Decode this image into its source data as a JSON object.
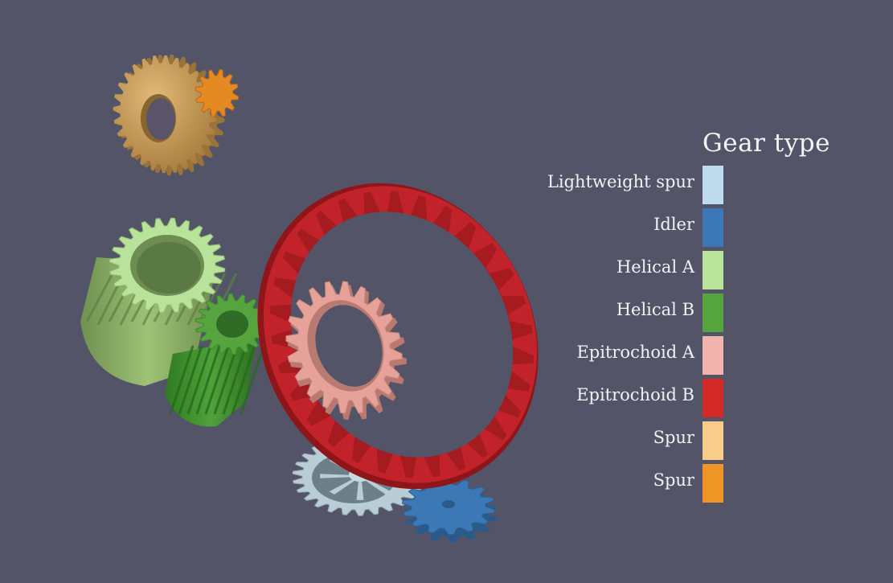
{
  "legend": {
    "title": "Gear type",
    "items": [
      {
        "label": "Lightweight spur",
        "color": "#bfdcee"
      },
      {
        "label": "Idler",
        "color": "#3b78b5"
      },
      {
        "label": "Helical A",
        "color": "#b9e39a"
      },
      {
        "label": "Helical B",
        "color": "#55a43d"
      },
      {
        "label": "Epitrochoid A",
        "color": "#f2b4ae"
      },
      {
        "label": "Epitrochoid B",
        "color": "#d42a27"
      },
      {
        "label": "Spur",
        "color": "#f8cd8b"
      },
      {
        "label": "Spur",
        "color": "#ef9526"
      }
    ]
  },
  "gears": [
    {
      "name": "spur-gear-large",
      "color": "#c59a55"
    },
    {
      "name": "spur-gear-small",
      "color": "#e58a22"
    },
    {
      "name": "helical-gear-a",
      "color": "#9dc56f"
    },
    {
      "name": "helical-gear-b",
      "color": "#3f8e2c"
    },
    {
      "name": "epitrochoid-ring",
      "color": "#b21d22"
    },
    {
      "name": "epitrochoid-inner",
      "color": "#d98f85"
    },
    {
      "name": "lightweight-spur-gear",
      "color": "#b8cdd6"
    },
    {
      "name": "idler-gear",
      "color": "#356ea8"
    }
  ]
}
